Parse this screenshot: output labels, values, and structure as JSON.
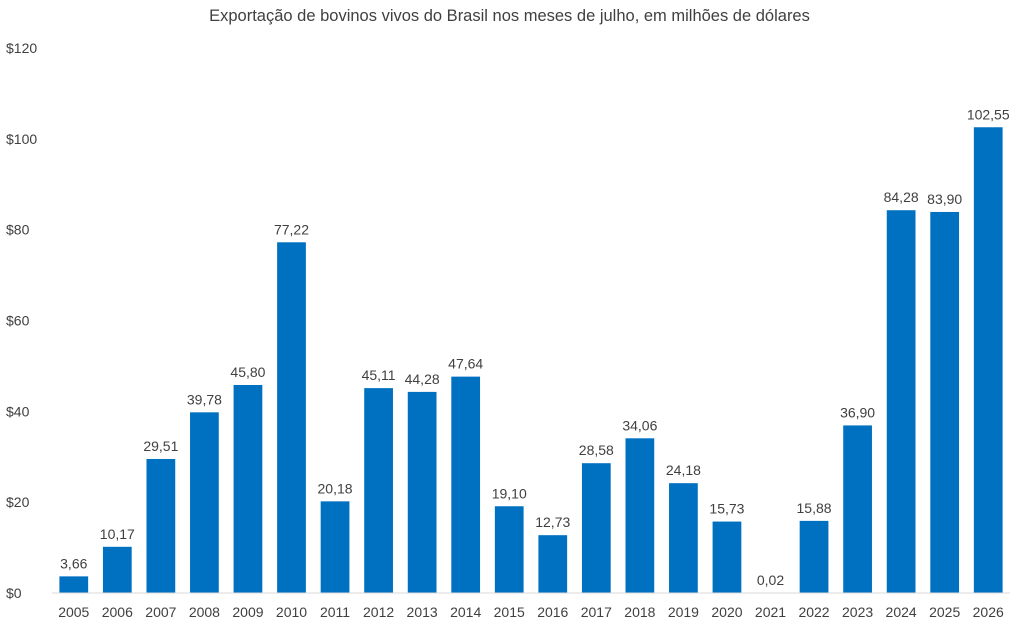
{
  "chart_data": {
    "type": "bar",
    "title": "Exportação de bovinos vivos do Brasil nos meses de julho, em milhões de dólares",
    "categories": [
      "2005",
      "2006",
      "2007",
      "2008",
      "2009",
      "2010",
      "2011",
      "2012",
      "2013",
      "2014",
      "2015",
      "2016",
      "2017",
      "2018",
      "2019",
      "2020",
      "2021",
      "2022",
      "2023",
      "2024",
      "2025",
      "2026"
    ],
    "values": [
      3.66,
      10.17,
      29.51,
      39.78,
      45.8,
      77.22,
      20.18,
      45.11,
      44.28,
      47.64,
      19.1,
      12.73,
      28.58,
      34.06,
      24.18,
      15.73,
      0.02,
      15.88,
      36.9,
      84.28,
      83.9,
      102.55
    ],
    "data_labels": [
      "3,66",
      "10,17",
      "29,51",
      "39,78",
      "45,80",
      "77,22",
      "20,18",
      "45,11",
      "44,28",
      "47,64",
      "19,10",
      "12,73",
      "28,58",
      "34,06",
      "24,18",
      "15,73",
      "0,02",
      "15,88",
      "36,90",
      "84,28",
      "83,90",
      "102,55"
    ],
    "y_ticks": [
      "$0",
      "$20",
      "$40",
      "$60",
      "$80",
      "$100",
      "$120"
    ],
    "ylim": [
      0,
      120
    ],
    "xlabel": "",
    "ylabel": "",
    "grid": false,
    "legend": "none",
    "bar_color": "#0070C0",
    "text_color": "#404040"
  }
}
